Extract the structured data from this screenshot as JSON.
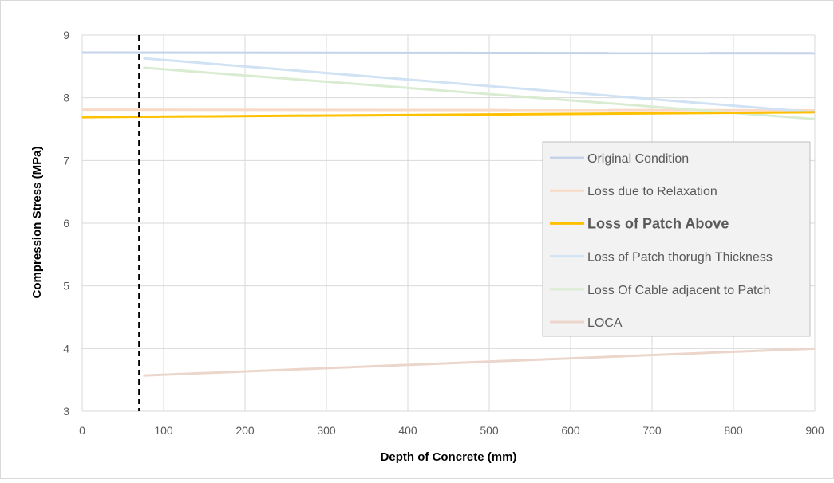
{
  "chart_data": {
    "type": "line",
    "title": "",
    "xlabel": "Depth of Concrete (mm)",
    "ylabel": "Compression Stress (MPa)",
    "xlim": [
      0,
      900
    ],
    "ylim": [
      3,
      9
    ],
    "xticks": [
      0,
      100,
      200,
      300,
      400,
      500,
      600,
      700,
      800,
      900
    ],
    "yticks": [
      3,
      4,
      5,
      6,
      7,
      8,
      9
    ],
    "grid": true,
    "legend_position": "right",
    "reference_line": {
      "x": 70,
      "style": "dashed",
      "color": "#000000"
    },
    "series": [
      {
        "name": "Original Condition",
        "color": "#c5d3ea",
        "emphasis": false,
        "x": [
          0,
          900
        ],
        "y": [
          8.72,
          8.71
        ]
      },
      {
        "name": "Loss due to Relaxation",
        "color": "#f8d9c6",
        "emphasis": false,
        "x": [
          0,
          900
        ],
        "y": [
          7.81,
          7.8
        ]
      },
      {
        "name": "Loss of Patch Above",
        "color": "#ffc000",
        "emphasis": true,
        "x": [
          0,
          900
        ],
        "y": [
          7.69,
          7.77
        ]
      },
      {
        "name": "Loss of Patch thorugh Thickness",
        "color": "#d0e2f4",
        "emphasis": false,
        "x": [
          75,
          900
        ],
        "y": [
          8.63,
          7.77
        ]
      },
      {
        "name": "Loss Of Cable adjacent to Patch",
        "color": "#d9ecd1",
        "emphasis": false,
        "x": [
          75,
          900
        ],
        "y": [
          8.48,
          7.66
        ]
      },
      {
        "name": "LOCA",
        "color": "#ecd6cc",
        "emphasis": false,
        "x": [
          75,
          900
        ],
        "y": [
          3.57,
          4.0
        ]
      }
    ]
  }
}
